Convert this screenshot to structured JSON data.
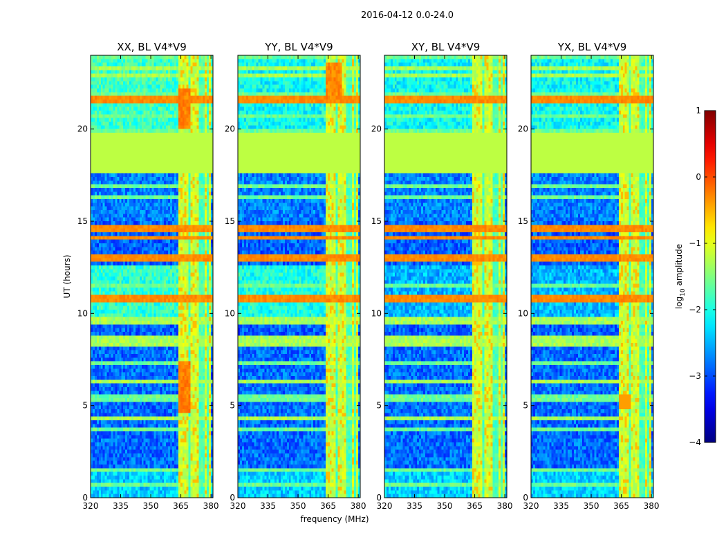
{
  "chart_data": {
    "type": "heatmap",
    "suptitle": "2016-04-12 0.0-24.0",
    "xlabel": "frequency (MHz)",
    "ylabel": "UT (hours)",
    "xlim": [
      320,
      381
    ],
    "ylim": [
      0,
      24
    ],
    "x_ticks": [
      "320",
      "335",
      "350",
      "365",
      "380"
    ],
    "y_ticks": [
      "0",
      "5",
      "10",
      "15",
      "20"
    ],
    "panels": [
      {
        "title": "XX, BL V4*V9",
        "profile": "xx"
      },
      {
        "title": "YY, BL V4*V9",
        "profile": "yy"
      },
      {
        "title": "XY, BL V4*V9",
        "profile": "xy"
      },
      {
        "title": "YX, BL V4*V9",
        "profile": "yx"
      }
    ],
    "flagged_ut_range": [
      17.6,
      19.9
    ],
    "rfi_band_mhz": [
      364,
      380
    ],
    "colorbar": {
      "label_prefix": "log",
      "label_sub": "10",
      "label_suffix": " amplitude",
      "range": [
        -4,
        1
      ],
      "ticks": [
        "1",
        "0",
        "−1",
        "−2",
        "−3",
        "−4"
      ],
      "colormap": "jet"
    }
  }
}
